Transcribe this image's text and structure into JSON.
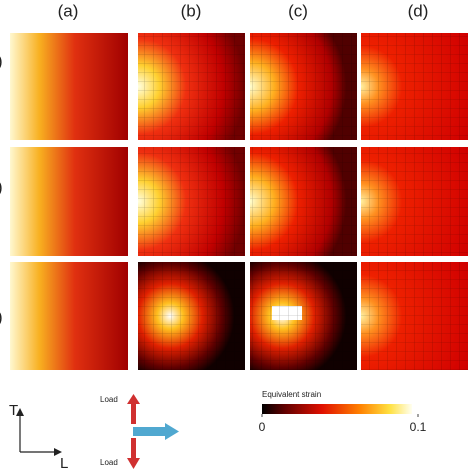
{
  "column_labels": [
    "(a)",
    "(b)",
    "(c)",
    "(d)"
  ],
  "row_labels": [
    ")",
    ")",
    ")"
  ],
  "axes": {
    "transverse": "T",
    "longitudinal": "L"
  },
  "load": {
    "top": "Load",
    "bottom": "Load"
  },
  "colorbar": {
    "title": "Equivalent strain",
    "lim": [
      0,
      0.1
    ],
    "ticks": [
      0,
      0.1
    ]
  }
}
